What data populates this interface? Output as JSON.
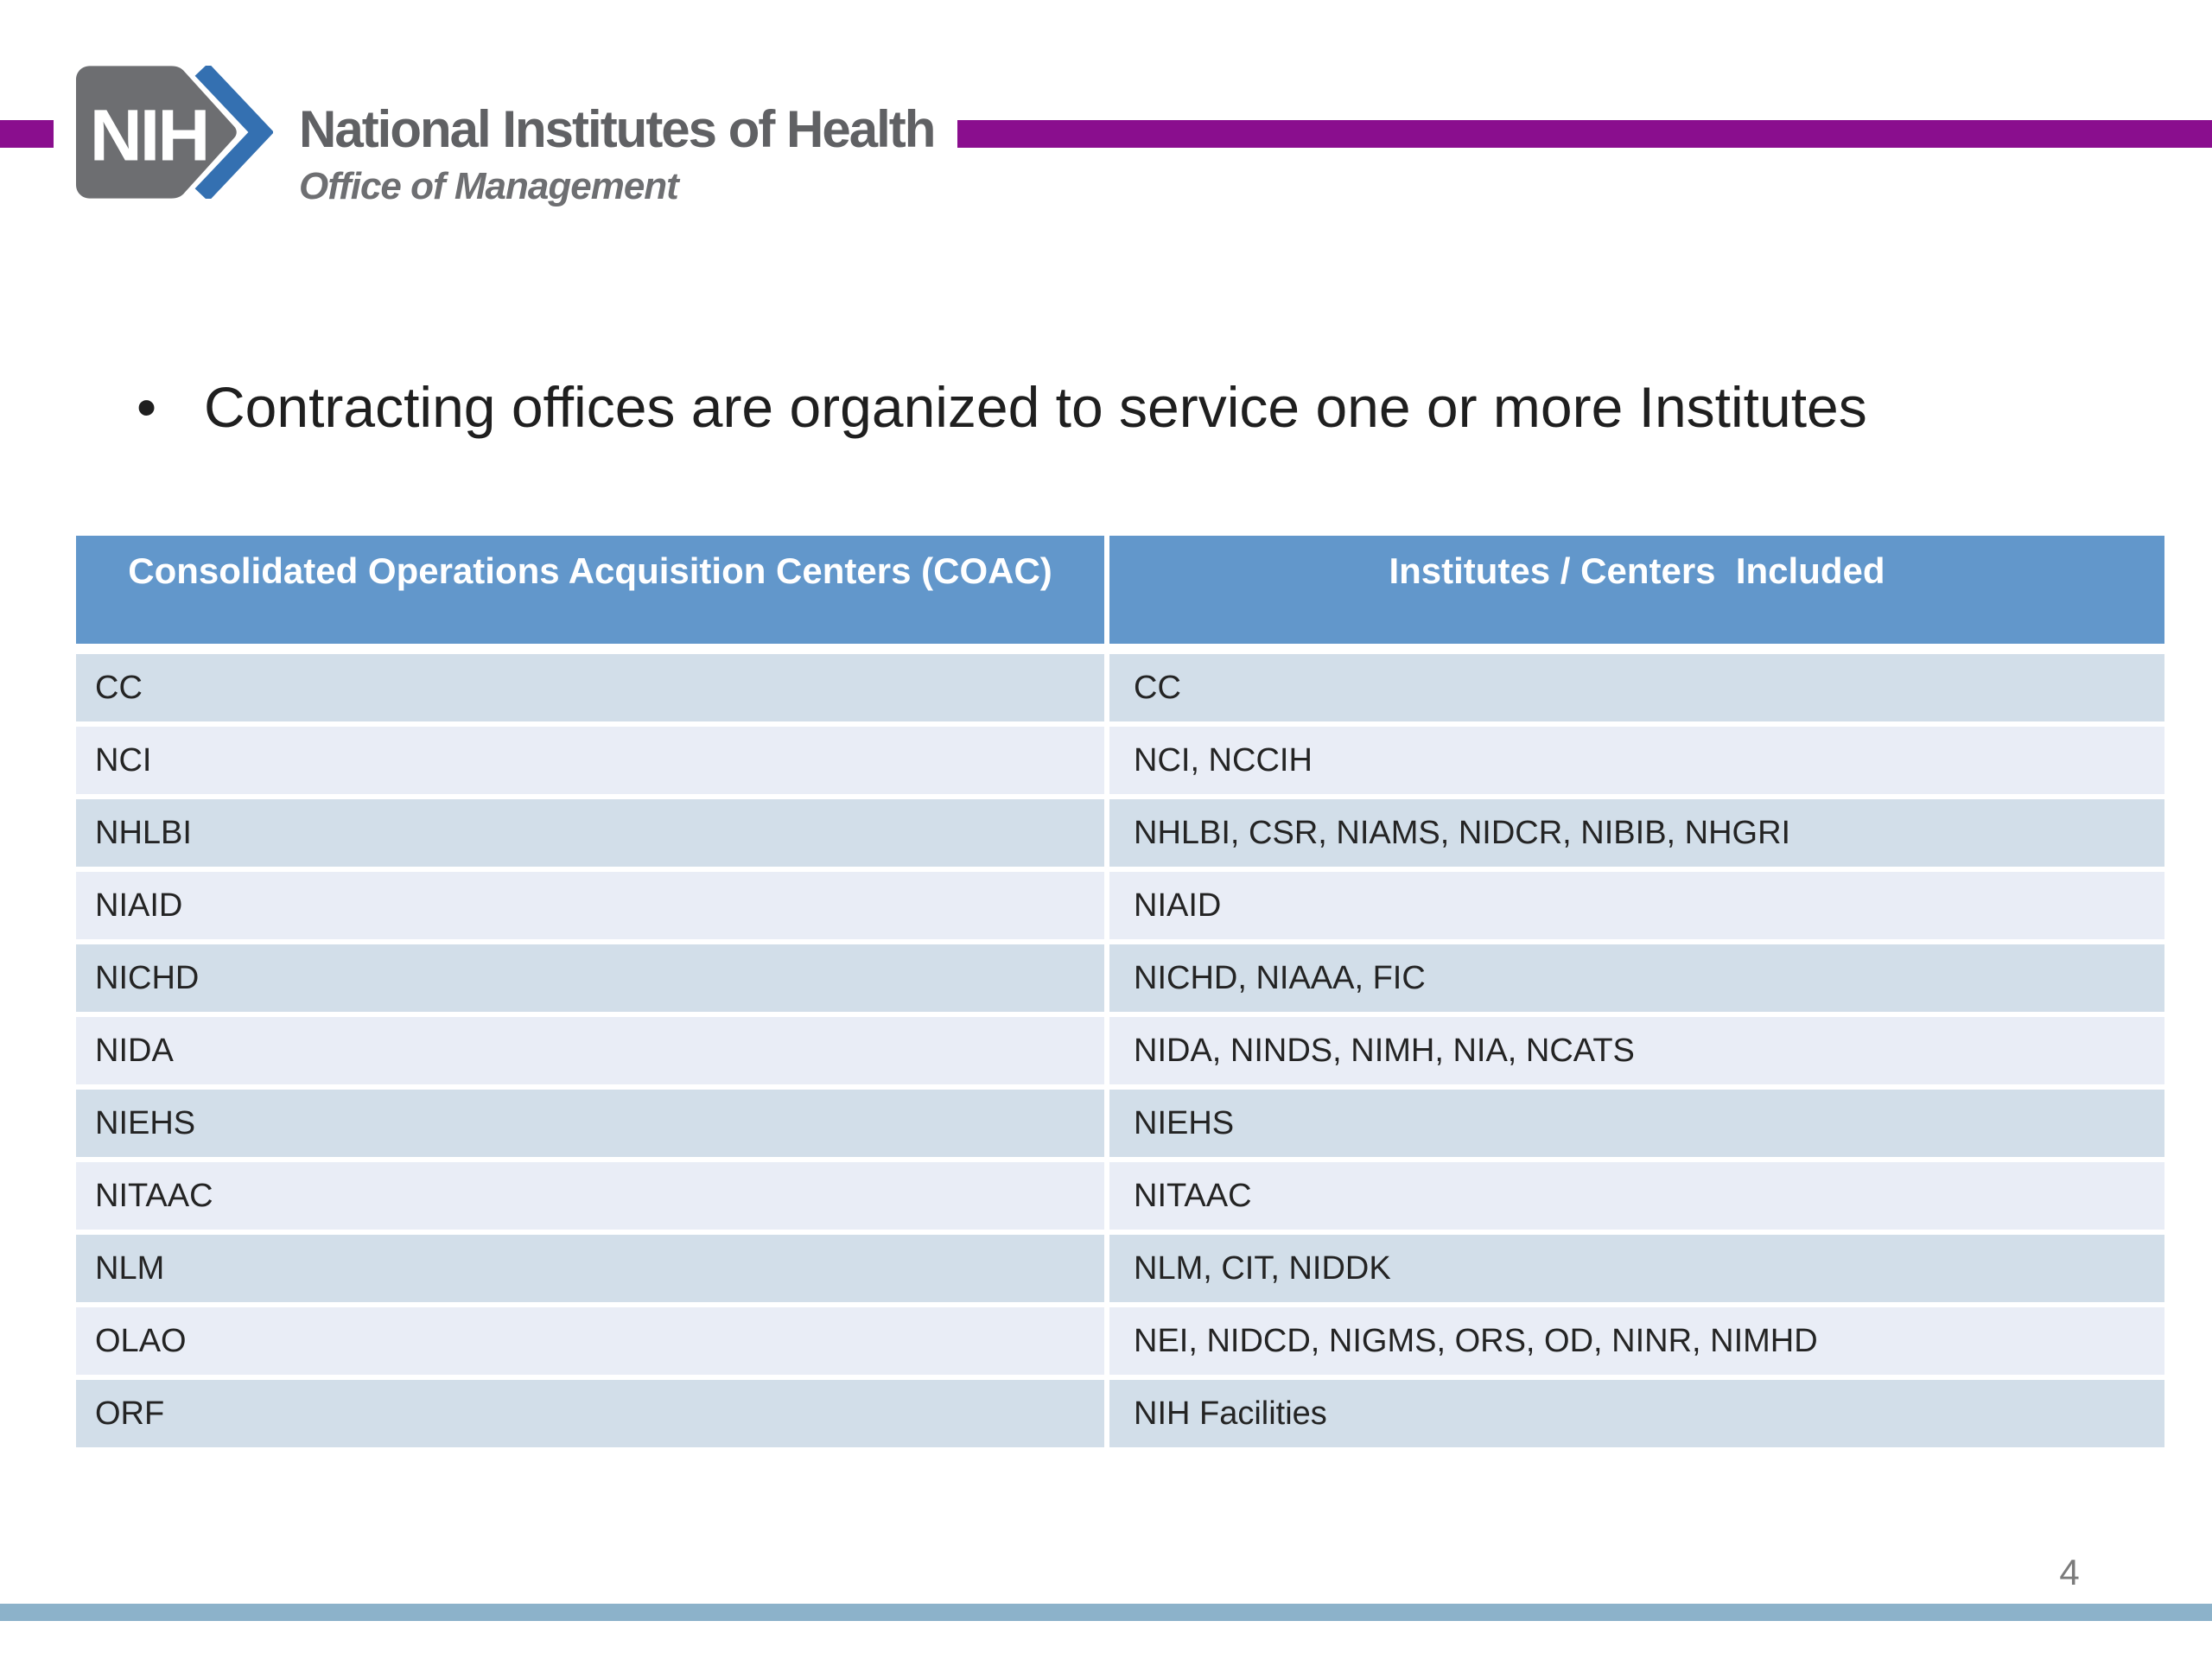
{
  "header": {
    "logo": {
      "acronym": "NIH",
      "org_name": "National Institutes of Health",
      "sub_org": "Office of Management"
    }
  },
  "slide": {
    "bullet_marker": "•",
    "bullet_text": "Contracting offices are organized to service one or more Institutes",
    "page_number": "4"
  },
  "table": {
    "columns": [
      "Consolidated Operations Acquisition Centers (COAC)",
      "Institutes / Centers  Included"
    ],
    "rows": [
      [
        "CC",
        "CC"
      ],
      [
        "NCI",
        "NCI, NCCIH"
      ],
      [
        "NHLBI",
        "NHLBI, CSR, NIAMS, NIDCR, NIBIB, NHGRI"
      ],
      [
        "NIAID",
        "NIAID"
      ],
      [
        "NICHD",
        "NICHD, NIAAA, FIC"
      ],
      [
        "NIDA",
        "NIDA, NINDS, NIMH, NIA, NCATS"
      ],
      [
        "NIEHS",
        "NIEHS"
      ],
      [
        "NITAAC",
        "NITAAC"
      ],
      [
        "NLM",
        "NLM, CIT, NIDDK"
      ],
      [
        "OLAO",
        "NEI, NIDCD, NIGMS, ORS, OD, NINR, NIMHD"
      ],
      [
        "ORF",
        "NIH Facilities"
      ]
    ]
  },
  "colors": {
    "accent_purple": "#8a0e8e",
    "table_header_blue": "#6297cb",
    "row_dark": "#d2dee9",
    "row_light": "#e9edf6",
    "footer_bar_blue": "#8cb2ca",
    "logo_gray": "#6d6e71",
    "logo_chevron_blue": "#3470b1"
  }
}
